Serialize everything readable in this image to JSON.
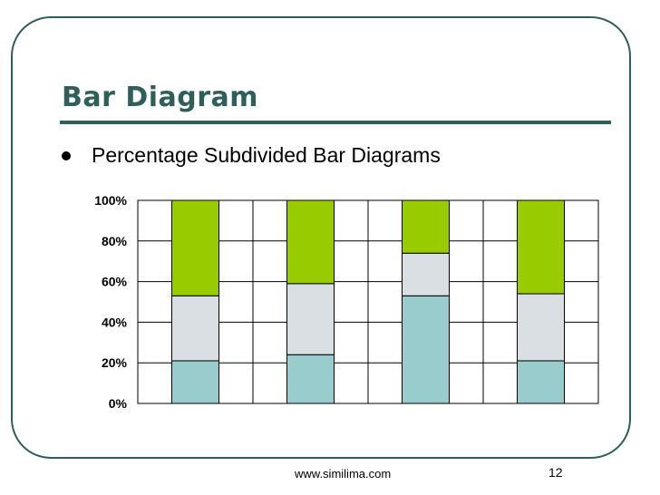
{
  "slide": {
    "title": "Bar Diagram",
    "bullet": "Percentage Subdivided Bar Diagrams",
    "footer": "www.similima.com",
    "page_number": "12"
  },
  "chart_data": {
    "type": "bar",
    "stacked": true,
    "categories": [
      "",
      "",
      "",
      ""
    ],
    "series": [
      {
        "values": [
          21,
          24,
          53,
          21
        ],
        "color": "#99cccc"
      },
      {
        "values": [
          32,
          35,
          21,
          33
        ],
        "color": "#d9dfe2"
      },
      {
        "values": [
          47,
          41,
          26,
          46
        ],
        "color": "#99cc00"
      }
    ],
    "ylim": [
      0,
      100
    ],
    "yticks": [
      0,
      20,
      40,
      60,
      80,
      100
    ],
    "ytick_labels": [
      "0%",
      "20%",
      "40%",
      "60%",
      "80%",
      "100%"
    ],
    "grid": true,
    "legend": "none"
  }
}
